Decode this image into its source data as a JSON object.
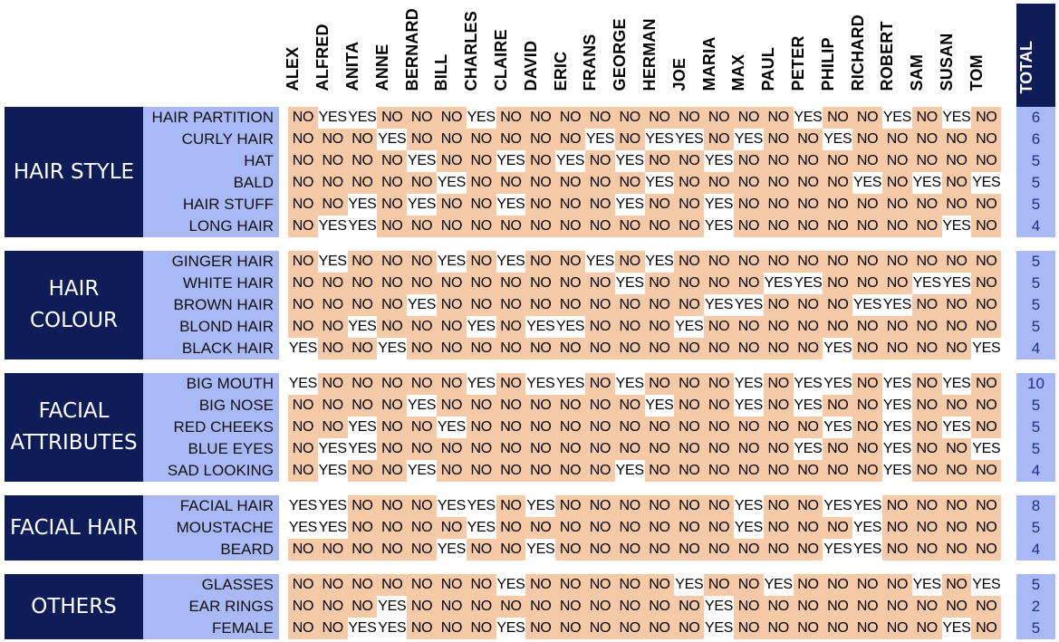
{
  "people": [
    "ALEX",
    "ALFRED",
    "ANITA",
    "ANNE",
    "BERNARD",
    "BILL",
    "CHARLES",
    "CLAIRE",
    "DAVID",
    "ERIC",
    "FRANS",
    "GEORGE",
    "HERMAN",
    "JOE",
    "MARIA",
    "MAX",
    "PAUL",
    "PETER",
    "PHILIP",
    "RICHARD",
    "ROBERT",
    "SAM",
    "SUSAN",
    "TOM"
  ],
  "total_label": "TOTAL",
  "colors": {
    "category_bg": "#0e1d57",
    "attribute_bg": "#a9b9f5",
    "no_cell": "#f6c9a7",
    "yes_cell": "#ffffff",
    "total_text": "#1f2f86"
  },
  "groups": [
    {
      "label_lines": [
        "HAIR STYLE"
      ],
      "rows": [
        {
          "label": "HAIR PARTITION",
          "total": "6",
          "values": [
            "NO",
            "YES",
            "YES",
            "NO",
            "NO",
            "NO",
            "YES",
            "NO",
            "NO",
            "NO",
            "NO",
            "NO",
            "NO",
            "NO",
            "NO",
            "NO",
            "NO",
            "YES",
            "NO",
            "NO",
            "YES",
            "NO",
            "YES",
            "NO"
          ]
        },
        {
          "label": "CURLY HAIR",
          "total": "6",
          "values": [
            "NO",
            "NO",
            "NO",
            "YES",
            "NO",
            "NO",
            "NO",
            "NO",
            "NO",
            "NO",
            "YES",
            "NO",
            "YES",
            "YES",
            "NO",
            "YES",
            "NO",
            "NO",
            "YES",
            "NO",
            "NO",
            "NO",
            "NO",
            "NO"
          ]
        },
        {
          "label": "HAT",
          "total": "5",
          "values": [
            "NO",
            "NO",
            "NO",
            "NO",
            "YES",
            "NO",
            "NO",
            "YES",
            "NO",
            "YES",
            "NO",
            "YES",
            "NO",
            "NO",
            "YES",
            "NO",
            "NO",
            "NO",
            "NO",
            "NO",
            "NO",
            "NO",
            "NO",
            "NO"
          ]
        },
        {
          "label": "BALD",
          "total": "5",
          "values": [
            "NO",
            "NO",
            "NO",
            "NO",
            "NO",
            "YES",
            "NO",
            "NO",
            "NO",
            "NO",
            "NO",
            "NO",
            "YES",
            "NO",
            "NO",
            "NO",
            "NO",
            "NO",
            "NO",
            "YES",
            "NO",
            "YES",
            "NO",
            "YES"
          ]
        },
        {
          "label": "HAIR STUFF",
          "total": "5",
          "values": [
            "NO",
            "NO",
            "YES",
            "NO",
            "YES",
            "NO",
            "NO",
            "YES",
            "NO",
            "NO",
            "NO",
            "YES",
            "NO",
            "NO",
            "YES",
            "NO",
            "NO",
            "NO",
            "NO",
            "NO",
            "NO",
            "NO",
            "NO",
            "NO"
          ]
        },
        {
          "label": "LONG HAIR",
          "total": "4",
          "values": [
            "NO",
            "YES",
            "YES",
            "NO",
            "NO",
            "NO",
            "NO",
            "NO",
            "NO",
            "NO",
            "NO",
            "NO",
            "NO",
            "NO",
            "YES",
            "NO",
            "NO",
            "NO",
            "NO",
            "NO",
            "NO",
            "NO",
            "YES",
            "NO"
          ]
        }
      ]
    },
    {
      "label_lines": [
        "HAIR",
        "COLOUR"
      ],
      "rows": [
        {
          "label": "GINGER HAIR",
          "total": "5",
          "values": [
            "NO",
            "YES",
            "NO",
            "NO",
            "NO",
            "YES",
            "NO",
            "YES",
            "NO",
            "NO",
            "YES",
            "NO",
            "YES",
            "NO",
            "NO",
            "NO",
            "NO",
            "NO",
            "NO",
            "NO",
            "NO",
            "NO",
            "NO",
            "NO"
          ]
        },
        {
          "label": "WHITE HAIR",
          "total": "5",
          "values": [
            "NO",
            "NO",
            "NO",
            "NO",
            "NO",
            "NO",
            "NO",
            "NO",
            "NO",
            "NO",
            "NO",
            "YES",
            "NO",
            "NO",
            "NO",
            "NO",
            "YES",
            "YES",
            "NO",
            "NO",
            "NO",
            "YES",
            "YES",
            "NO"
          ]
        },
        {
          "label": "BROWN HAIR",
          "total": "5",
          "values": [
            "NO",
            "NO",
            "NO",
            "NO",
            "YES",
            "NO",
            "NO",
            "NO",
            "NO",
            "NO",
            "NO",
            "NO",
            "NO",
            "NO",
            "YES",
            "YES",
            "NO",
            "NO",
            "NO",
            "YES",
            "YES",
            "NO",
            "NO",
            "NO"
          ]
        },
        {
          "label": "BLOND HAIR",
          "total": "5",
          "values": [
            "NO",
            "NO",
            "YES",
            "NO",
            "NO",
            "NO",
            "YES",
            "NO",
            "YES",
            "YES",
            "NO",
            "NO",
            "NO",
            "YES",
            "NO",
            "NO",
            "NO",
            "NO",
            "NO",
            "NO",
            "NO",
            "NO",
            "NO",
            "NO"
          ]
        },
        {
          "label": "BLACK HAIR",
          "total": "4",
          "values": [
            "YES",
            "NO",
            "NO",
            "YES",
            "NO",
            "NO",
            "NO",
            "NO",
            "NO",
            "NO",
            "NO",
            "NO",
            "NO",
            "NO",
            "NO",
            "NO",
            "NO",
            "NO",
            "YES",
            "NO",
            "NO",
            "NO",
            "NO",
            "YES"
          ]
        }
      ]
    },
    {
      "label_lines": [
        "FACIAL",
        "ATTRIBUTES"
      ],
      "rows": [
        {
          "label": "BIG MOUTH",
          "total": "10",
          "values": [
            "YES",
            "NO",
            "NO",
            "NO",
            "NO",
            "NO",
            "YES",
            "NO",
            "YES",
            "YES",
            "NO",
            "YES",
            "NO",
            "NO",
            "NO",
            "YES",
            "NO",
            "YES",
            "YES",
            "NO",
            "YES",
            "NO",
            "YES",
            "NO"
          ]
        },
        {
          "label": "BIG NOSE",
          "total": "5",
          "values": [
            "NO",
            "NO",
            "NO",
            "NO",
            "YES",
            "NO",
            "NO",
            "NO",
            "NO",
            "NO",
            "NO",
            "NO",
            "YES",
            "NO",
            "NO",
            "YES",
            "NO",
            "YES",
            "NO",
            "NO",
            "YES",
            "NO",
            "NO",
            "NO"
          ]
        },
        {
          "label": "RED CHEEKS",
          "total": "5",
          "values": [
            "NO",
            "NO",
            "YES",
            "NO",
            "NO",
            "YES",
            "NO",
            "NO",
            "NO",
            "NO",
            "NO",
            "NO",
            "NO",
            "NO",
            "NO",
            "NO",
            "NO",
            "NO",
            "YES",
            "NO",
            "YES",
            "NO",
            "YES",
            "NO"
          ]
        },
        {
          "label": "BLUE EYES",
          "total": "5",
          "values": [
            "NO",
            "YES",
            "YES",
            "NO",
            "NO",
            "NO",
            "NO",
            "NO",
            "NO",
            "NO",
            "NO",
            "NO",
            "NO",
            "NO",
            "NO",
            "NO",
            "NO",
            "YES",
            "NO",
            "NO",
            "YES",
            "NO",
            "NO",
            "YES"
          ]
        },
        {
          "label": "SAD LOOKING",
          "total": "4",
          "values": [
            "NO",
            "YES",
            "NO",
            "NO",
            "YES",
            "NO",
            "NO",
            "NO",
            "NO",
            "NO",
            "NO",
            "YES",
            "NO",
            "NO",
            "NO",
            "NO",
            "NO",
            "NO",
            "NO",
            "NO",
            "YES",
            "NO",
            "NO",
            "NO"
          ]
        }
      ]
    },
    {
      "label_lines": [
        "FACIAL HAIR"
      ],
      "rows": [
        {
          "label": "FACIAL HAIR",
          "total": "8",
          "values": [
            "YES",
            "YES",
            "NO",
            "NO",
            "NO",
            "YES",
            "YES",
            "NO",
            "YES",
            "NO",
            "NO",
            "NO",
            "NO",
            "NO",
            "NO",
            "YES",
            "NO",
            "NO",
            "YES",
            "YES",
            "NO",
            "NO",
            "NO",
            "NO"
          ]
        },
        {
          "label": "MOUSTACHE",
          "total": "5",
          "values": [
            "YES",
            "YES",
            "NO",
            "NO",
            "NO",
            "NO",
            "YES",
            "NO",
            "NO",
            "NO",
            "NO",
            "NO",
            "NO",
            "NO",
            "NO",
            "YES",
            "NO",
            "NO",
            "NO",
            "YES",
            "NO",
            "NO",
            "NO",
            "NO"
          ]
        },
        {
          "label": "BEARD",
          "total": "4",
          "values": [
            "NO",
            "NO",
            "NO",
            "NO",
            "NO",
            "YES",
            "NO",
            "NO",
            "YES",
            "NO",
            "NO",
            "NO",
            "NO",
            "NO",
            "NO",
            "NO",
            "NO",
            "NO",
            "YES",
            "YES",
            "NO",
            "NO",
            "NO",
            "NO"
          ]
        }
      ]
    },
    {
      "label_lines": [
        "OTHERS"
      ],
      "rows": [
        {
          "label": "GLASSES",
          "total": "5",
          "values": [
            "NO",
            "NO",
            "NO",
            "NO",
            "NO",
            "NO",
            "NO",
            "YES",
            "NO",
            "NO",
            "NO",
            "NO",
            "NO",
            "YES",
            "NO",
            "NO",
            "YES",
            "NO",
            "NO",
            "NO",
            "NO",
            "YES",
            "NO",
            "YES"
          ]
        },
        {
          "label": "EAR RINGS",
          "total": "2",
          "values": [
            "NO",
            "NO",
            "NO",
            "YES",
            "NO",
            "NO",
            "NO",
            "NO",
            "NO",
            "NO",
            "NO",
            "NO",
            "NO",
            "NO",
            "YES",
            "NO",
            "NO",
            "NO",
            "NO",
            "NO",
            "NO",
            "NO",
            "NO",
            "NO"
          ]
        },
        {
          "label": "FEMALE",
          "total": "5",
          "values": [
            "NO",
            "NO",
            "YES",
            "YES",
            "NO",
            "NO",
            "NO",
            "YES",
            "NO",
            "NO",
            "NO",
            "NO",
            "NO",
            "NO",
            "YES",
            "NO",
            "NO",
            "NO",
            "NO",
            "NO",
            "NO",
            "NO",
            "YES",
            "NO"
          ]
        }
      ]
    }
  ]
}
